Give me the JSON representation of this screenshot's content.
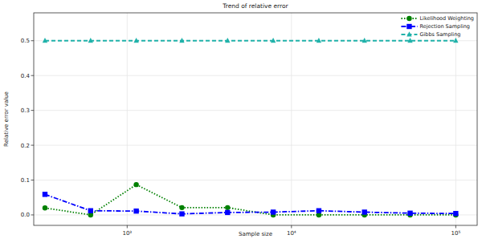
{
  "chart_data": {
    "type": "line",
    "title": "Trend of relative error",
    "x_label": "Sample size",
    "y_label": "Relative error value",
    "x": [
      316,
      599,
      1136,
      2154,
      4084,
      7743,
      14678,
      27826,
      52749,
      100000
    ],
    "series": [
      {
        "name": "Likelihood Weighting",
        "color": "#008000",
        "marker": "circle",
        "line_style": "dotted",
        "values": [
          0.02,
          0.0,
          0.087,
          0.021,
          0.021,
          0.0,
          0.0,
          0.0,
          0.0,
          0.0
        ]
      },
      {
        "name": "Rejection Sampling",
        "color": "#0000ff",
        "marker": "square",
        "line_style": "dashdot",
        "values": [
          0.059,
          0.012,
          0.011,
          0.003,
          0.007,
          0.008,
          0.012,
          0.008,
          0.005,
          0.004
        ]
      },
      {
        "name": "Gibbs Sampling",
        "color": "#20b2aa",
        "marker": "triangle",
        "line_style": "dashed",
        "values": [
          0.5,
          0.5,
          0.5,
          0.5,
          0.5,
          0.5,
          0.5,
          0.5,
          0.5,
          0.5
        ]
      }
    ],
    "log": "x",
    "xlim": [
      270,
      135000
    ],
    "xticks": [
      {
        "value": 1000,
        "label": "10³"
      },
      {
        "value": 10000,
        "label": "10⁴"
      },
      {
        "value": 100000,
        "label": "10⁵"
      }
    ],
    "ylim": [
      -0.03,
      0.58
    ],
    "yticks": [
      {
        "value": 0,
        "label": "0.0"
      },
      0.1,
      0.2,
      0.3,
      0.4,
      0.5
    ],
    "grid": true,
    "legend": "upper right"
  }
}
